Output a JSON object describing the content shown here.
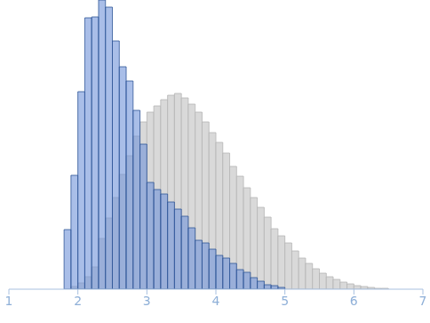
{
  "chart_data": {
    "type": "histogram",
    "bins": [
      1.8,
      1.9,
      2.0,
      2.1,
      2.2,
      2.3,
      2.4,
      2.5,
      2.6,
      2.7,
      2.8,
      2.9,
      3.0,
      3.1,
      3.2,
      3.3,
      3.4,
      3.5,
      3.6,
      3.7,
      3.8,
      3.9,
      4.0,
      4.1,
      4.2,
      4.3,
      4.4,
      4.5,
      4.6,
      4.7,
      4.8,
      4.9,
      5.0,
      5.1,
      5.2,
      5.3,
      5.4,
      5.5,
      5.6,
      5.7,
      5.8,
      5.9,
      6.0,
      6.1,
      6.2,
      6.3,
      6.4,
      6.5
    ],
    "series": [
      {
        "color": "#d9d9d9",
        "values": [
          0,
          3,
          7,
          14,
          25,
          57,
          80,
          103,
          129,
          150,
          172,
          188,
          199,
          206,
          213,
          218,
          220,
          215,
          208,
          199,
          188,
          176,
          165,
          153,
          138,
          127,
          114,
          103,
          92,
          81,
          68,
          60,
          52,
          43,
          35,
          29,
          23,
          18,
          14,
          11,
          8,
          6,
          4,
          3,
          2,
          1,
          1
        ]
      },
      {
        "color": "#6f93d8",
        "values": [
          67,
          128,
          222,
          305,
          306,
          325,
          317,
          279,
          250,
          234,
          201,
          163,
          120,
          112,
          107,
          98,
          90,
          82,
          69,
          55,
          52,
          45,
          38,
          35,
          29,
          22,
          19,
          13,
          9,
          5,
          4,
          2,
          0,
          0,
          0,
          0,
          0,
          0,
          0,
          0,
          0,
          0,
          0,
          0,
          0,
          0,
          0
        ]
      }
    ],
    "xlim": [
      1,
      7
    ],
    "xticks": [
      1,
      2,
      3,
      4,
      5,
      6,
      7
    ],
    "ylim": [
      0,
      325
    ],
    "tick_labels": "x"
  }
}
